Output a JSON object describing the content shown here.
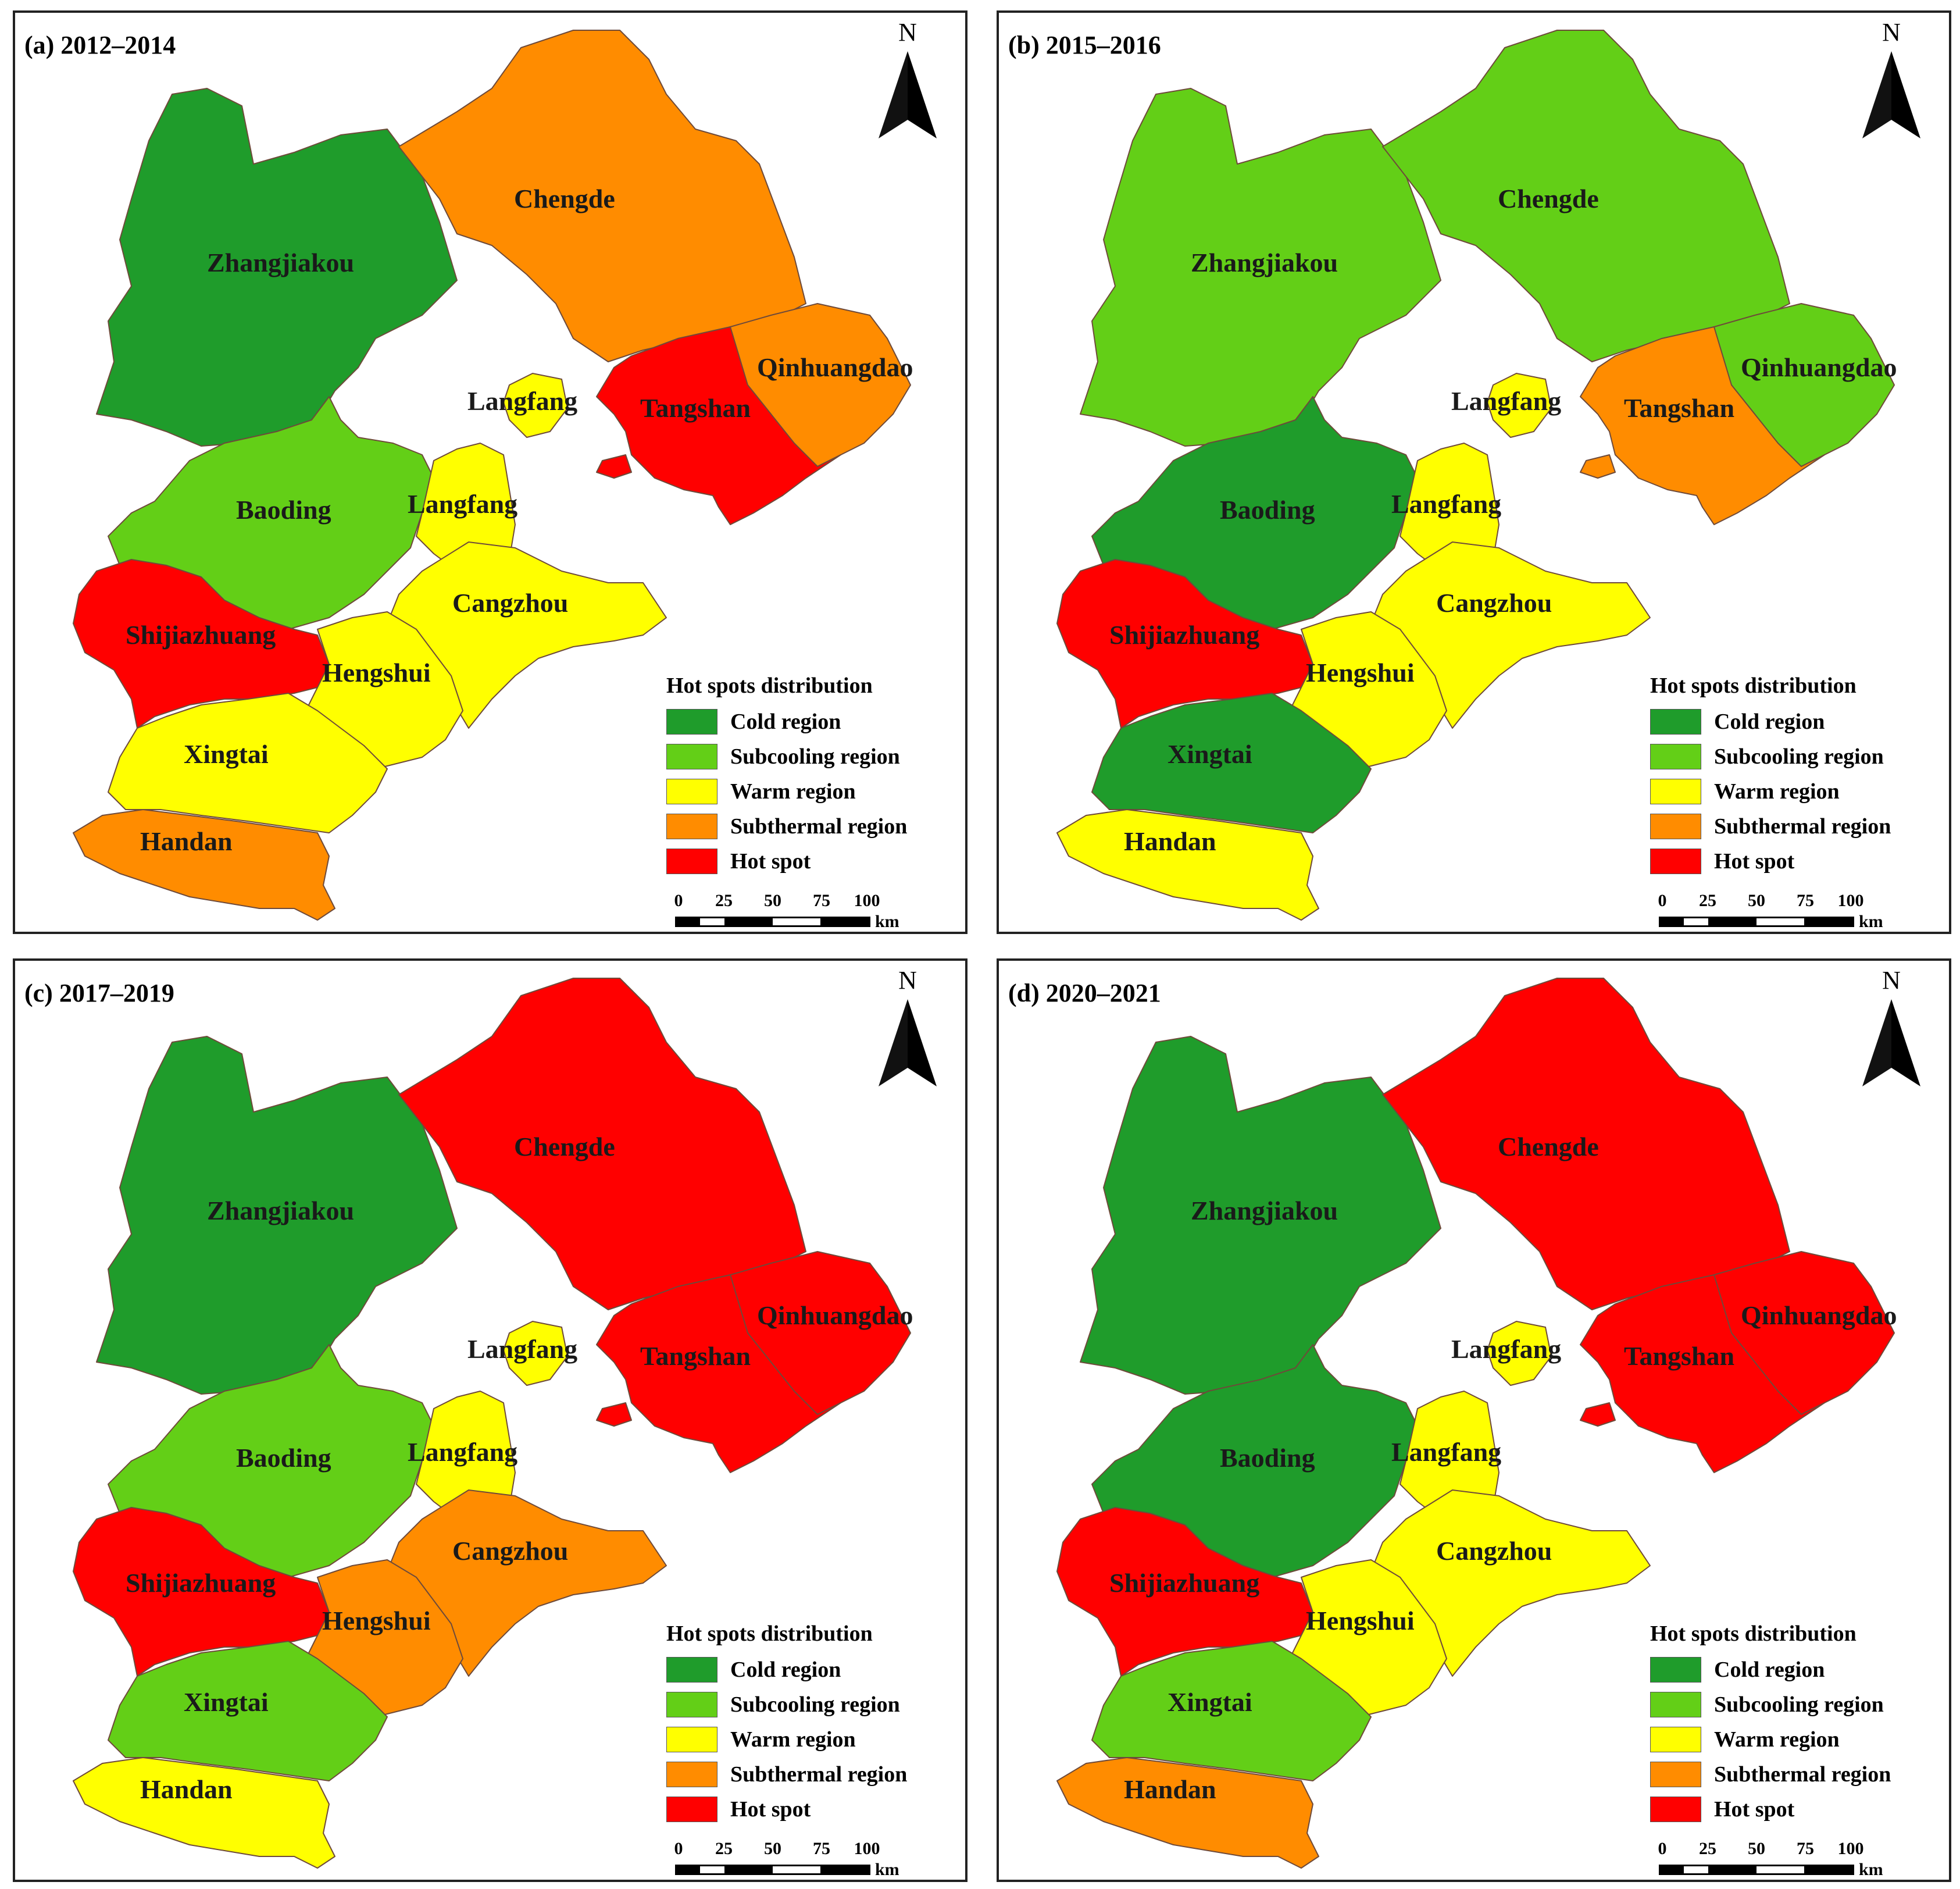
{
  "legend": {
    "title": "Hot spots distribution",
    "items": [
      {
        "key": "cold",
        "label": "Cold region",
        "color": "#1f9c2b"
      },
      {
        "key": "subcooling",
        "label": "Subcooling region",
        "color": "#63cf17"
      },
      {
        "key": "warm",
        "label": "Warm region",
        "color": "#ffff00"
      },
      {
        "key": "subthermal",
        "label": "Subthermal region",
        "color": "#ff8c00"
      },
      {
        "key": "hot",
        "label": "Hot spot",
        "color": "#ff0000"
      }
    ]
  },
  "north_label": "N",
  "scale": {
    "ticks": [
      "0",
      "25",
      "50",
      "75",
      "100"
    ],
    "unit": "km"
  },
  "panels": [
    {
      "id": "a",
      "title": "(a) 2012–2014",
      "classes": {
        "Zhangjiakou": "cold",
        "Chengde": "subthermal",
        "Qinhuangdao": "subthermal",
        "Tangshan": "hot",
        "Langfang": "warm",
        "Baoding": "subcooling",
        "Shijiazhuang": "hot",
        "Hengshui": "warm",
        "Cangzhou": "warm",
        "Xingtai": "warm",
        "Handan": "subthermal"
      }
    },
    {
      "id": "b",
      "title": "(b) 2015–2016",
      "classes": {
        "Zhangjiakou": "subcooling",
        "Chengde": "subcooling",
        "Qinhuangdao": "subcooling",
        "Tangshan": "subthermal",
        "Langfang": "warm",
        "Baoding": "cold",
        "Shijiazhuang": "hot",
        "Hengshui": "warm",
        "Cangzhou": "warm",
        "Xingtai": "cold",
        "Handan": "warm"
      }
    },
    {
      "id": "c",
      "title": "(c) 2017–2019",
      "classes": {
        "Zhangjiakou": "cold",
        "Chengde": "hot",
        "Qinhuangdao": "hot",
        "Tangshan": "hot",
        "Langfang": "warm",
        "Baoding": "subcooling",
        "Shijiazhuang": "hot",
        "Hengshui": "subthermal",
        "Cangzhou": "subthermal",
        "Xingtai": "subcooling",
        "Handan": "warm"
      }
    },
    {
      "id": "d",
      "title": "(d) 2020–2021",
      "classes": {
        "Zhangjiakou": "cold",
        "Chengde": "hot",
        "Qinhuangdao": "hot",
        "Tangshan": "hot",
        "Langfang": "warm",
        "Baoding": "cold",
        "Shijiazhuang": "hot",
        "Hengshui": "warm",
        "Cangzhou": "warm",
        "Xingtai": "subcooling",
        "Handan": "subthermal"
      }
    }
  ],
  "region_labels": {
    "Zhangjiakou": "Zhangjiakou",
    "Chengde": "Chengde",
    "Qinhuangdao": "Qinhuangdao",
    "Tangshan": "Tangshan",
    "Langfang_north": "Langfang",
    "Langfang_south": "Langfang",
    "Baoding": "Baoding",
    "Shijiazhuang": "Shijiazhuang",
    "Hengshui": "Hengshui",
    "Cangzhou": "Cangzhou",
    "Xingtai": "Xingtai",
    "Handan": "Handan"
  }
}
